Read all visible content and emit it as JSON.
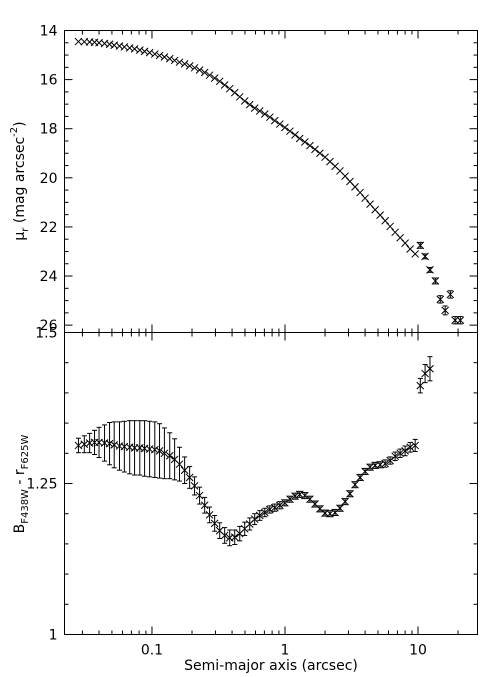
{
  "chart_data": [
    {
      "type": "scatter",
      "panel": "top",
      "ylabel_main": "μ",
      "ylabel_sub": "r",
      "ylabel_rest": " (mag arcsec",
      "ylabel_sup": "-2",
      "ylabel_end": ")",
      "xscale": "log",
      "xlim": [
        0.022,
        28
      ],
      "ylim": [
        26.3,
        14
      ],
      "y_inverted": true,
      "yticks": [
        "14",
        "16",
        "18",
        "20",
        "22",
        "24",
        "26"
      ],
      "ytick_values": [
        14,
        16,
        18,
        20,
        22,
        24,
        26
      ],
      "grid": false,
      "series": [
        {
          "marker": "x",
          "x": [
            0.028,
            0.031,
            0.034,
            0.037,
            0.04,
            0.044,
            0.048,
            0.052,
            0.057,
            0.062,
            0.068,
            0.074,
            0.081,
            0.088,
            0.096,
            0.105,
            0.114,
            0.124,
            0.136,
            0.148,
            0.161,
            0.176,
            0.192,
            0.209,
            0.228,
            0.249,
            0.271,
            0.296,
            0.323,
            0.352,
            0.384,
            0.419,
            0.457,
            0.498,
            0.543,
            0.592,
            0.646,
            0.705,
            0.769,
            0.838,
            0.915,
            0.998,
            1.09,
            1.19,
            1.29,
            1.41,
            1.54,
            1.68,
            1.83,
            2.0,
            2.18,
            2.38,
            2.59,
            2.83,
            3.08,
            3.36,
            3.67,
            4.0,
            4.36,
            4.76,
            5.19,
            5.66,
            6.17,
            6.73,
            7.34,
            8.0,
            8.73,
            9.52,
            10.4,
            11.3,
            12.3,
            13.5,
            14.7,
            16.0,
            17.5,
            19.0,
            20.8
          ],
          "y": [
            14.45,
            14.46,
            14.47,
            14.48,
            14.5,
            14.53,
            14.56,
            14.6,
            14.63,
            14.67,
            14.71,
            14.75,
            14.8,
            14.85,
            14.9,
            14.96,
            15.02,
            15.08,
            15.15,
            15.22,
            15.29,
            15.36,
            15.44,
            15.52,
            15.61,
            15.71,
            15.82,
            15.94,
            16.07,
            16.22,
            16.37,
            16.53,
            16.7,
            16.87,
            17.02,
            17.16,
            17.28,
            17.4,
            17.53,
            17.67,
            17.81,
            17.95,
            18.1,
            18.25,
            18.4,
            18.54,
            18.69,
            18.84,
            19.0,
            19.16,
            19.34,
            19.53,
            19.72,
            19.93,
            20.15,
            20.37,
            20.6,
            20.83,
            21.07,
            21.3,
            21.52,
            21.75,
            21.98,
            22.22,
            22.44,
            22.66,
            22.9,
            23.1,
            22.75,
            23.2,
            23.75,
            24.2,
            24.95,
            25.4,
            24.75,
            25.8,
            25.8
          ],
          "yerr": [
            0,
            0,
            0,
            0,
            0,
            0,
            0,
            0,
            0,
            0,
            0,
            0,
            0,
            0,
            0,
            0,
            0,
            0,
            0,
            0,
            0,
            0,
            0,
            0,
            0,
            0,
            0,
            0,
            0,
            0,
            0,
            0,
            0,
            0,
            0,
            0,
            0,
            0,
            0,
            0,
            0,
            0,
            0,
            0,
            0,
            0,
            0,
            0,
            0,
            0,
            0,
            0,
            0,
            0,
            0,
            0,
            0,
            0,
            0,
            0,
            0,
            0,
            0,
            0,
            0,
            0,
            0,
            0,
            0.12,
            0.1,
            0.1,
            0.12,
            0.15,
            0.18,
            0.15,
            0.15,
            0.15
          ]
        }
      ]
    },
    {
      "type": "scatter",
      "panel": "bottom",
      "ylabel_main": "B",
      "ylabel_sub": "F438W",
      "ylabel_rest": " - r",
      "ylabel_sub2": "F625W",
      "xlabel": "Semi-major axis (arcsec)",
      "xscale": "log",
      "xlim": [
        0.022,
        28
      ],
      "xticks": [
        "0.1",
        "1",
        "10"
      ],
      "xtick_values": [
        0.1,
        1,
        10
      ],
      "ylim": [
        1.0,
        1.5
      ],
      "yticks": [
        "1",
        "1.25",
        "1.5"
      ],
      "ytick_values": [
        1.0,
        1.25,
        1.5
      ],
      "grid": false,
      "series": [
        {
          "marker": "x-errorbar",
          "x": [
            0.028,
            0.031,
            0.034,
            0.037,
            0.04,
            0.044,
            0.048,
            0.052,
            0.057,
            0.062,
            0.068,
            0.074,
            0.081,
            0.088,
            0.096,
            0.105,
            0.114,
            0.124,
            0.136,
            0.148,
            0.161,
            0.176,
            0.192,
            0.209,
            0.228,
            0.249,
            0.271,
            0.296,
            0.323,
            0.352,
            0.384,
            0.419,
            0.457,
            0.498,
            0.543,
            0.592,
            0.646,
            0.705,
            0.769,
            0.838,
            0.915,
            0.998,
            1.09,
            1.19,
            1.29,
            1.41,
            1.54,
            1.68,
            1.83,
            2.0,
            2.18,
            2.38,
            2.59,
            2.83,
            3.08,
            3.36,
            3.67,
            4.0,
            4.36,
            4.76,
            5.19,
            5.66,
            6.17,
            6.73,
            7.34,
            8.0,
            8.73,
            9.52,
            10.4,
            11.3,
            12.3
          ],
          "y": [
            1.313,
            1.315,
            1.317,
            1.318,
            1.318,
            1.317,
            1.316,
            1.314,
            1.312,
            1.311,
            1.31,
            1.309,
            1.309,
            1.308,
            1.307,
            1.306,
            1.304,
            1.3,
            1.296,
            1.29,
            1.282,
            1.272,
            1.26,
            1.246,
            1.23,
            1.214,
            1.198,
            1.184,
            1.172,
            1.164,
            1.16,
            1.161,
            1.167,
            1.175,
            1.183,
            1.191,
            1.197,
            1.202,
            1.207,
            1.21,
            1.214,
            1.218,
            1.224,
            1.229,
            1.232,
            1.23,
            1.224,
            1.216,
            1.208,
            1.201,
            1.2,
            1.202,
            1.209,
            1.22,
            1.233,
            1.248,
            1.26,
            1.27,
            1.277,
            1.28,
            1.281,
            1.283,
            1.288,
            1.295,
            1.3,
            1.304,
            1.31,
            1.313,
            1.412,
            1.432,
            1.44
          ],
          "yerr": [
            0.012,
            0.014,
            0.016,
            0.02,
            0.025,
            0.03,
            0.035,
            0.038,
            0.04,
            0.042,
            0.044,
            0.045,
            0.045,
            0.046,
            0.046,
            0.046,
            0.045,
            0.042,
            0.038,
            0.034,
            0.028,
            0.022,
            0.018,
            0.015,
            0.014,
            0.013,
            0.013,
            0.013,
            0.013,
            0.013,
            0.013,
            0.012,
            0.012,
            0.011,
            0.01,
            0.009,
            0.008,
            0.007,
            0.006,
            0.006,
            0.006,
            0.005,
            0.005,
            0.005,
            0.005,
            0.005,
            0.005,
            0.005,
            0.005,
            0.005,
            0.005,
            0.005,
            0.005,
            0.005,
            0.005,
            0.005,
            0.005,
            0.005,
            0.005,
            0.005,
            0.005,
            0.006,
            0.006,
            0.007,
            0.007,
            0.008,
            0.008,
            0.01,
            0.012,
            0.015,
            0.02
          ]
        }
      ]
    }
  ]
}
